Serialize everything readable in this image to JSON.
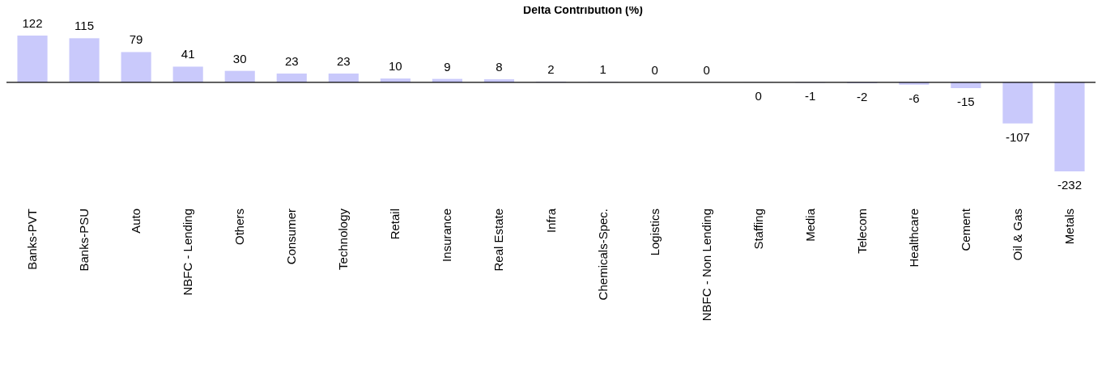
{
  "chart_data": {
    "type": "bar",
    "title": "Delta Contribution (%)",
    "categories": [
      "Banks-PVT",
      "Banks-PSU",
      "Auto",
      "NBFC - Lending",
      "Others",
      "Consumer",
      "Technology",
      "Retail",
      "Insurance",
      "Real Estate",
      "Infra",
      "Chemicals-Spec.",
      "Logistics",
      "NBFC - Non Lending",
      "Staffing",
      "Media",
      "Telecom",
      "Healthcare",
      "Cement",
      "Oil & Gas",
      "Metals"
    ],
    "values": [
      122,
      115,
      79,
      41,
      30,
      23,
      23,
      10,
      9,
      8,
      2,
      1,
      0.3,
      0.2,
      -0.3,
      -1,
      -2,
      -6,
      -15,
      -107,
      -232
    ],
    "value_labels": [
      "122",
      "115",
      "79",
      "41",
      "30",
      "23",
      "23",
      "10",
      "9",
      "8",
      "2",
      "1",
      "0",
      "0",
      "0",
      "-1",
      "-2",
      "-6",
      "-15",
      "-107",
      "-232"
    ],
    "color": "#c9c9fb"
  }
}
